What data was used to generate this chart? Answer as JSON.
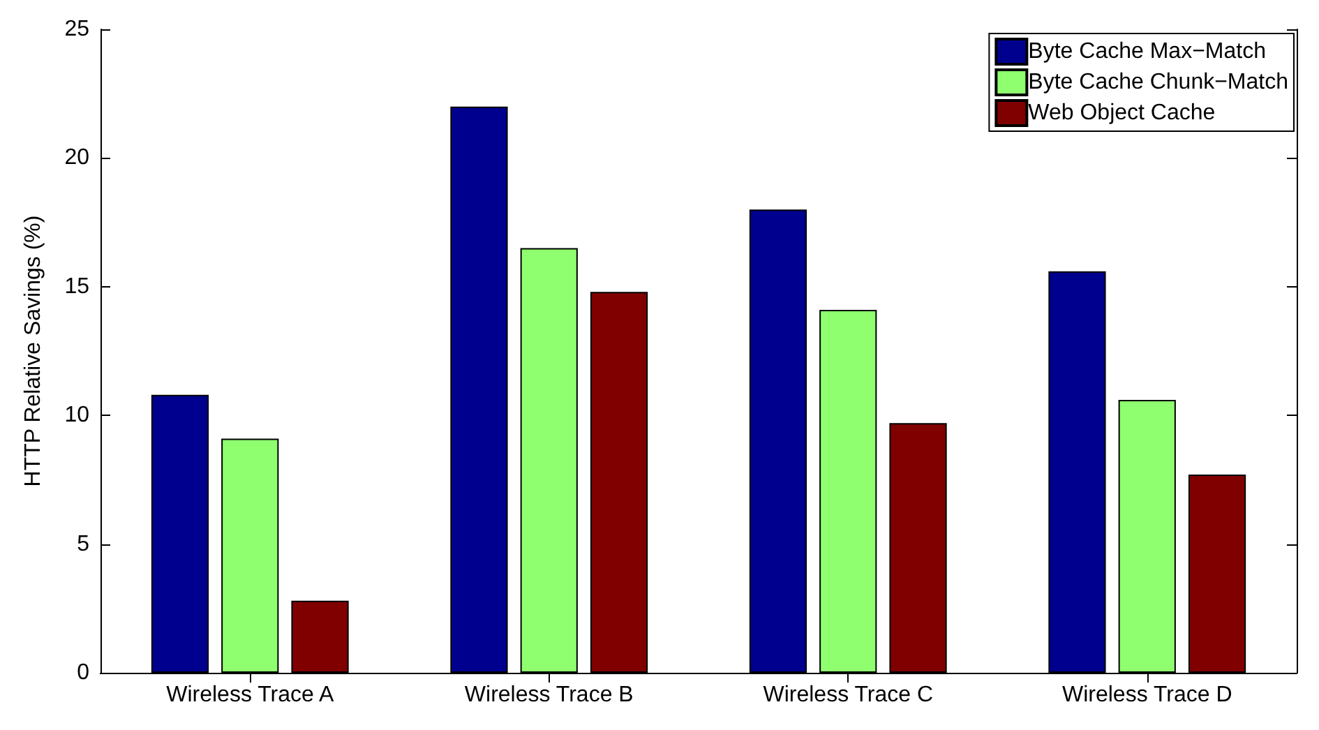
{
  "chart_data": {
    "type": "bar",
    "ylabel": "HTTP Relative Savings (%)",
    "categories": [
      "Wireless Trace A",
      "Wireless Trace B",
      "Wireless Trace C",
      "Wireless Trace D"
    ],
    "series": [
      {
        "name": "Byte Cache Max−Match",
        "color": "#00008f",
        "values": [
          10.8,
          22.0,
          18.0,
          15.6
        ]
      },
      {
        "name": "Byte Cache Chunk−Match",
        "color": "#8fff6f",
        "values": [
          9.1,
          16.5,
          14.1,
          10.6
        ]
      },
      {
        "name": "Web Object Cache",
        "color": "#800000",
        "values": [
          2.8,
          14.8,
          9.7,
          7.7
        ]
      }
    ],
    "ylim": [
      0,
      25
    ],
    "yticks": [
      0,
      5,
      10,
      15,
      20,
      25
    ],
    "grid": false,
    "legend": "top right"
  }
}
